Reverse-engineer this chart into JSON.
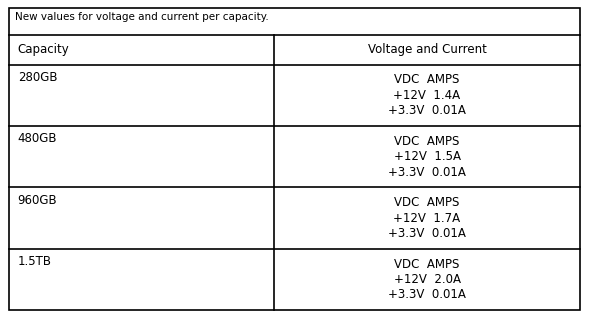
{
  "title": "New values for voltage and current per capacity.",
  "col_headers": [
    "Capacity",
    "Voltage and Current"
  ],
  "rows": [
    {
      "capacity": "280GB",
      "voltage_lines": [
        "VDC  AMPS",
        "+12V  1.4A",
        "+3.3V  0.01A"
      ]
    },
    {
      "capacity": "480GB",
      "voltage_lines": [
        "VDC  AMPS",
        "+12V  1.5A",
        "+3.3V  0.01A"
      ]
    },
    {
      "capacity": "960GB",
      "voltage_lines": [
        "VDC  AMPS",
        "+12V  1.7A",
        "+3.3V  0.01A"
      ]
    },
    {
      "capacity": "1.5TB",
      "voltage_lines": [
        "VDC  AMPS",
        "+12V  2.0A",
        "+3.3V  0.01A"
      ]
    }
  ],
  "bg_color": "#ffffff",
  "border_color": "#000000",
  "text_color": "#000000",
  "title_fontsize": 7.5,
  "header_fontsize": 8.5,
  "cell_fontsize": 8.5,
  "fig_width": 5.89,
  "fig_height": 3.15
}
